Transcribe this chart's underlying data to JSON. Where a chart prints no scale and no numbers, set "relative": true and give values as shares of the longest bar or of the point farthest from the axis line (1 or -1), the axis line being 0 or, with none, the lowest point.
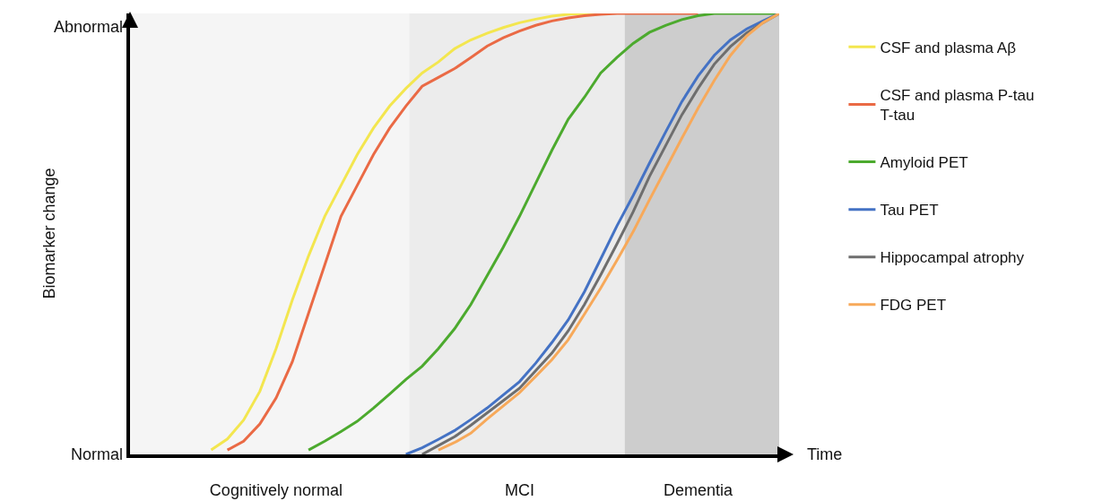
{
  "chart_data": {
    "type": "line",
    "xlabel": "Time",
    "ylabel": "Biomarker change",
    "relative": true,
    "tick_labels": "x",
    "grid": false,
    "legend": "right",
    "marker": "none",
    "line_style": "solid",
    "annotations": [
      "Normal",
      "Abnormal"
    ],
    "categories": [
      null,
      null,
      null,
      null,
      null,
      null,
      null,
      null,
      null,
      "Cognitively normal",
      null,
      null,
      null,
      null,
      null,
      null,
      null,
      null,
      null,
      null,
      null,
      null,
      null,
      null,
      "MCI",
      null,
      null,
      null,
      null,
      null,
      null,
      null,
      null,
      null,
      null,
      "Dementia",
      null,
      null,
      null,
      null,
      null
    ],
    "series": [
      {
        "name": "CSF and plasma Aβ",
        "color": "#f3e64f",
        "values": [
          null,
          null,
          null,
          null,
          null,
          0.01,
          0.035,
          0.078,
          0.143,
          0.24,
          0.35,
          0.45,
          0.54,
          0.61,
          0.68,
          0.74,
          0.79,
          0.83,
          0.865,
          0.89,
          0.92,
          0.94,
          0.955,
          0.968,
          0.979,
          0.987,
          0.994,
          0.998,
          1,
          1,
          null,
          null,
          null,
          null,
          null,
          null,
          null,
          null,
          null,
          null,
          null
        ]
      },
      {
        "name": "CSF and plasma P-tau\nT-tau",
        "color": "#ea6a45",
        "values": [
          null,
          null,
          null,
          null,
          null,
          null,
          0.01,
          0.03,
          0.069,
          0.128,
          0.21,
          0.32,
          0.43,
          0.54,
          0.61,
          0.68,
          0.74,
          0.79,
          0.835,
          0.855,
          0.875,
          0.9,
          0.926,
          0.945,
          0.96,
          0.973,
          0.983,
          0.99,
          0.995,
          0.998,
          1,
          1,
          1,
          1,
          1,
          1,
          null,
          null,
          null,
          null,
          null
        ]
      },
      {
        "name": "Amyloid PET",
        "color": "#4caa2e",
        "values": [
          null,
          null,
          null,
          null,
          null,
          null,
          null,
          null,
          null,
          null,
          null,
          0.01,
          0.03,
          0.052,
          0.075,
          0.105,
          0.137,
          0.17,
          0.2,
          0.24,
          0.285,
          0.34,
          0.405,
          0.47,
          0.54,
          0.615,
          0.69,
          0.76,
          0.81,
          0.865,
          0.9,
          0.932,
          0.957,
          0.973,
          0.986,
          0.995,
          1,
          1,
          1,
          1,
          1
        ]
      },
      {
        "name": "Tau PET",
        "color": "#4472c4",
        "values": [
          null,
          null,
          null,
          null,
          null,
          null,
          null,
          null,
          null,
          null,
          null,
          null,
          null,
          null,
          null,
          null,
          null,
          0,
          0.015,
          0.034,
          0.054,
          0.079,
          0.105,
          0.135,
          0.165,
          0.207,
          0.254,
          0.305,
          0.369,
          0.443,
          0.518,
          0.587,
          0.66,
          0.731,
          0.8,
          0.858,
          0.905,
          0.94,
          0.965,
          0.983,
          1
        ]
      },
      {
        "name": "Hippocampal atrophy",
        "color": "#6e6e6e",
        "values": [
          null,
          null,
          null,
          null,
          null,
          null,
          null,
          null,
          null,
          null,
          null,
          null,
          null,
          null,
          null,
          null,
          null,
          null,
          0,
          0.02,
          0.04,
          0.066,
          0.094,
          0.122,
          0.15,
          0.19,
          0.23,
          0.28,
          0.34,
          0.407,
          0.477,
          0.55,
          0.63,
          0.7,
          0.77,
          0.83,
          0.885,
          0.925,
          0.956,
          0.979,
          1
        ]
      },
      {
        "name": "FDG PET",
        "color": "#f7a95a",
        "values": [
          null,
          null,
          null,
          null,
          null,
          null,
          null,
          null,
          null,
          null,
          null,
          null,
          null,
          null,
          null,
          null,
          null,
          null,
          null,
          0.01,
          0.027,
          0.048,
          0.08,
          0.11,
          0.14,
          0.177,
          0.215,
          0.26,
          0.318,
          0.377,
          0.44,
          0.505,
          0.577,
          0.647,
          0.717,
          0.785,
          0.848,
          0.905,
          0.949,
          0.979,
          1
        ]
      }
    ]
  }
}
